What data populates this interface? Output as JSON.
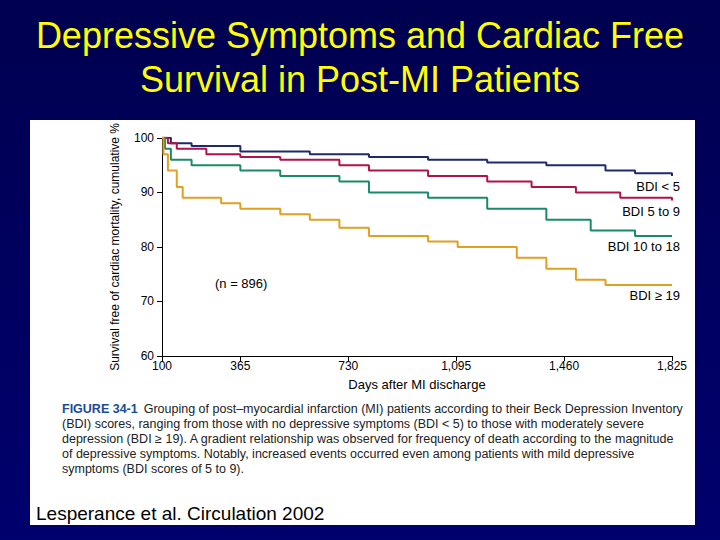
{
  "chart_data": {
    "type": "step",
    "title": "Depressive Symptoms and Cardiac Free Survival in Post-MI Patients",
    "x_label": "Days after MI discharge",
    "y_label": "Survival free of cardiac mortality, cumulative %",
    "annotations": [
      "(n = 896)"
    ],
    "caption": {
      "label": "FIGURE 34-1",
      "text": "Grouping of post–myocardial infarction (MI) patients according to their Beck Depression Inventory (BDI) scores, ranging from those with no depressive symptoms (BDI < 5) to those with moderately severe depression (BDI ≥ 19). A gradient relationship was observed for frequency of death according to the magnitude of depressive symptoms. Notably, increased events occurred even among patients with mild depressive symptoms (BDI scores of 5 to 9)."
    },
    "source": "Lesperance et al. Circulation 2002",
    "xlim": [
      100,
      1825
    ],
    "xticks": [
      100,
      365,
      730,
      1095,
      1460,
      1825
    ],
    "ylim": [
      60,
      100
    ],
    "yticks": [
      60,
      70,
      80,
      90,
      100
    ],
    "grid": false,
    "series": [
      {
        "name": "BDI < 5",
        "color": "#1f2a6b",
        "x": [
          100,
          130,
          200,
          365,
          600,
          800,
          1000,
          1200,
          1400,
          1600,
          1700,
          1825
        ],
        "values": [
          100,
          99,
          98.5,
          97.5,
          97,
          96.5,
          96,
          95.5,
          95,
          94,
          93.5,
          93
        ]
      },
      {
        "name": "BDI 5 to 9",
        "color": "#b0124a",
        "x": [
          100,
          120,
          150,
          250,
          365,
          500,
          700,
          800,
          1000,
          1200,
          1350,
          1500,
          1650,
          1825
        ],
        "values": [
          100,
          99,
          98,
          97,
          96.5,
          96,
          95,
          94,
          93,
          92,
          91,
          90,
          89,
          88.5
        ]
      },
      {
        "name": "BDI 10 to 18",
        "color": "#1a8a6a",
        "x": [
          100,
          110,
          130,
          200,
          365,
          500,
          700,
          800,
          1000,
          1200,
          1400,
          1550,
          1700,
          1825
        ],
        "values": [
          100,
          98,
          96,
          95,
          94,
          93,
          92,
          90,
          89,
          87,
          85,
          83,
          82,
          82
        ]
      },
      {
        "name": "BDI ≥ 19",
        "color": "#e0a020",
        "x": [
          100,
          105,
          120,
          150,
          170,
          300,
          365,
          500,
          600,
          700,
          800,
          1000,
          1100,
          1300,
          1400,
          1500,
          1600,
          1825
        ],
        "values": [
          100,
          97,
          94,
          91,
          89,
          88,
          87,
          86,
          85,
          83.5,
          82,
          81,
          80,
          78,
          76,
          74,
          73,
          73
        ]
      }
    ]
  }
}
